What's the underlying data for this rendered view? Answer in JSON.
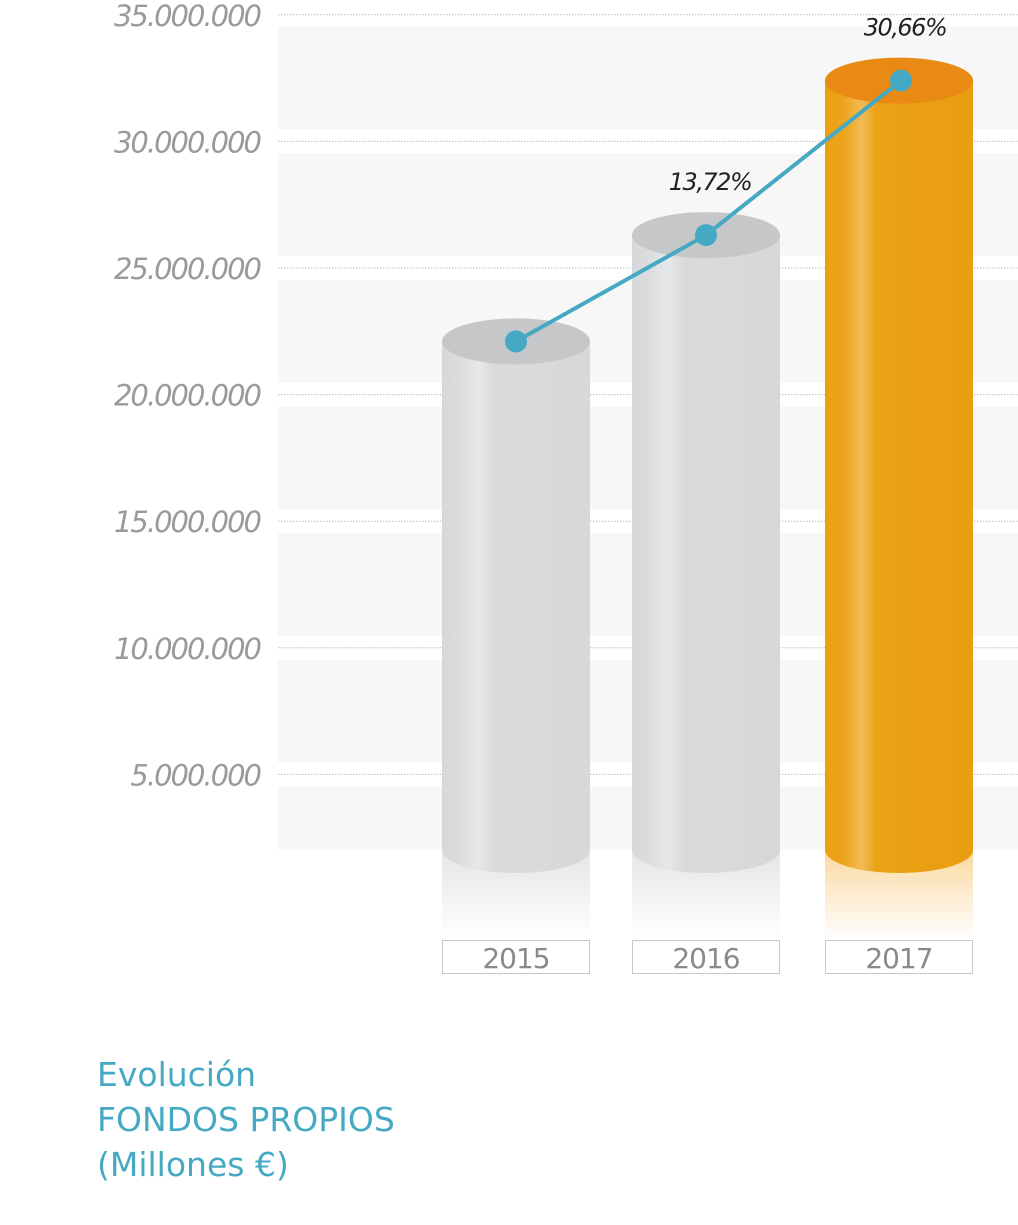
{
  "chart_data": {
    "type": "bar",
    "categories": [
      "2015",
      "2016",
      "2017"
    ],
    "values": [
      22100000,
      26300000,
      32400000
    ],
    "line_labels": [
      "",
      "13,72%",
      "30,66%"
    ],
    "ylim": [
      0,
      35000000
    ],
    "yticks": [
      5000000,
      10000000,
      15000000,
      20000000,
      25000000,
      30000000,
      35000000
    ],
    "ytick_labels": [
      "5.000.000",
      "10.000.000",
      "15.000.000",
      "20.000.000",
      "25.000.000",
      "30.000.000",
      "35.000.000"
    ],
    "grid": true,
    "colors": {
      "past": "#d9dadc",
      "current": "#eba010",
      "line": "#45a9c4"
    },
    "title_lines": [
      "Evolución",
      "FONDOS PROPIOS",
      "(Millones €)"
    ]
  }
}
